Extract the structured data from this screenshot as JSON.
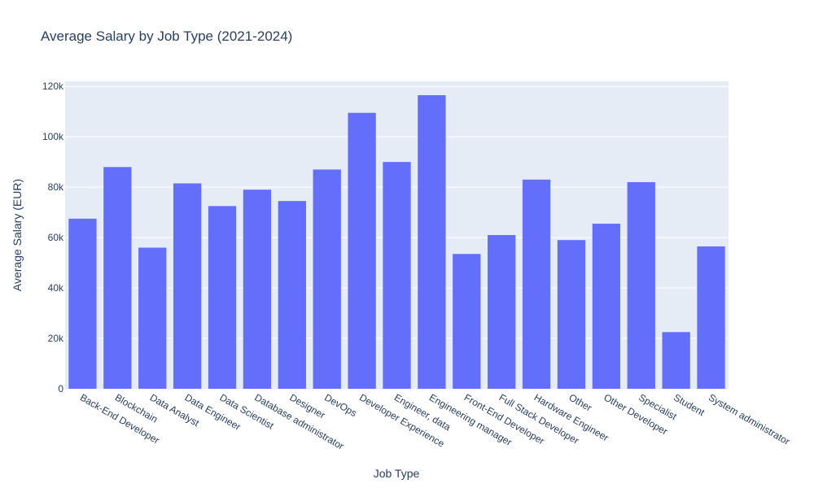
{
  "chart_data": {
    "type": "bar",
    "title": "Average Salary by Job Type (2021-2024)",
    "xlabel": "Job Type",
    "ylabel": "Average Salary (EUR)",
    "ylim": [
      0,
      122000
    ],
    "y_ticks": [
      0,
      20000,
      40000,
      60000,
      80000,
      100000,
      120000
    ],
    "y_tick_labels": [
      "0",
      "20k",
      "40k",
      "60k",
      "80k",
      "100k",
      "120k"
    ],
    "categories": [
      "Back-End Developer",
      "Blockchain",
      "Data Analyst",
      "Data Engineer",
      "Data Scientist",
      "Database administrator",
      "Designer",
      "DevOps",
      "Developer Experience",
      "Engineer, data",
      "Engineering manager",
      "Front-End Developer",
      "Full Stack Developer",
      "Hardware Engineer",
      "Other",
      "Other Developer",
      "Specialist",
      "Student",
      "System administrator"
    ],
    "values": [
      67500,
      88000,
      56000,
      81500,
      72500,
      79000,
      74500,
      87000,
      109500,
      90000,
      116500,
      53500,
      61000,
      83000,
      59000,
      65500,
      82000,
      22500,
      56500
    ],
    "bar_color": "#636efa",
    "plot_background": "#e5ecf6",
    "grid": true,
    "legend": "none"
  }
}
